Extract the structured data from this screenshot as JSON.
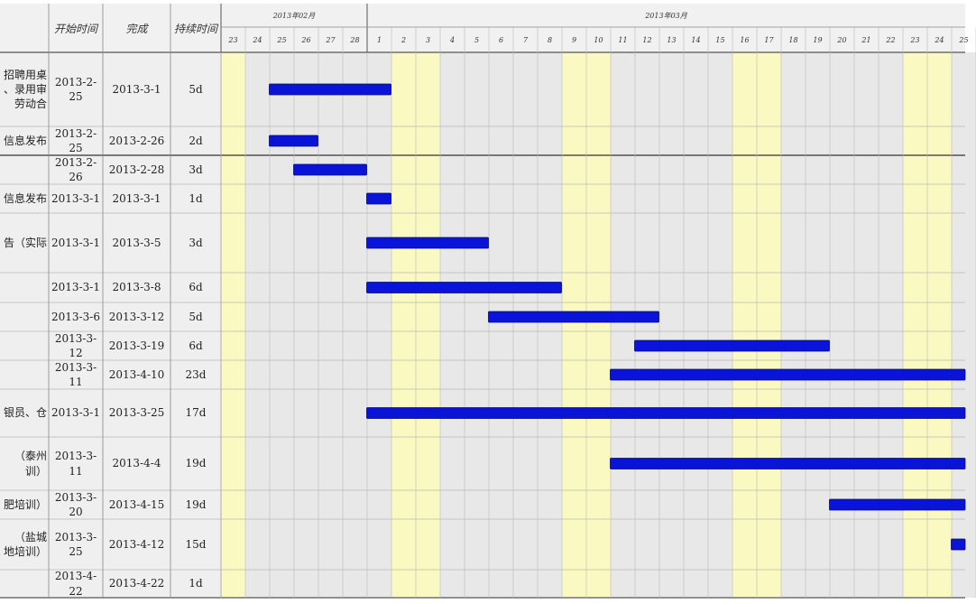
{
  "columns": {
    "start": "开始时间",
    "finish": "完成",
    "duration": "持续时间"
  },
  "months": [
    {
      "label": "2013年02月",
      "first_day_index": 0,
      "day_count": 6
    },
    {
      "label": "2013年03月",
      "first_day_index": 6,
      "day_count": 25
    }
  ],
  "days": [
    "23",
    "24",
    "25",
    "26",
    "27",
    "28",
    "1",
    "2",
    "3",
    "4",
    "5",
    "6",
    "7",
    "8",
    "9",
    "10",
    "11",
    "12",
    "13",
    "14",
    "15",
    "16",
    "17",
    "18",
    "19",
    "20",
    "21",
    "22",
    "23",
    "24",
    "25"
  ],
  "weekend_indices": [
    0,
    7,
    8,
    14,
    15,
    21,
    22,
    28,
    29
  ],
  "colors": {
    "bar": "#0a14d9",
    "weekend": "#fbf9c2",
    "weekday": "#e8e8e8",
    "grid": "#b9b9b9",
    "border": "#7a1f1f"
  },
  "chart_data": {
    "type": "gantt",
    "x_axis": {
      "start": "2013-2-23",
      "end": "2013-3-25",
      "unit": "day"
    },
    "tasks": [
      {
        "name": "招聘用桌\n、录用审\n劳动合",
        "start": "2013-2-25",
        "finish": "2013-3-1",
        "duration": "5d",
        "bar": [
          2,
          7
        ]
      },
      {
        "name": "信息发布",
        "start": "2013-2-25",
        "finish": "2013-2-26",
        "duration": "2d",
        "bar": [
          2,
          4
        ]
      },
      {
        "name": "",
        "start": "2013-2-26",
        "finish": "2013-2-28",
        "duration": "3d",
        "bar": [
          3,
          6
        ]
      },
      {
        "name": "信息发布",
        "start": "2013-3-1",
        "finish": "2013-3-1",
        "duration": "1d",
        "bar": [
          6,
          7
        ]
      },
      {
        "name": "告（实际",
        "start": "2013-3-1",
        "finish": "2013-3-5",
        "duration": "3d",
        "bar": [
          6,
          11
        ]
      },
      {
        "name": "",
        "start": "2013-3-1",
        "finish": "2013-3-8",
        "duration": "6d",
        "bar": [
          6,
          14
        ]
      },
      {
        "name": "",
        "start": "2013-3-6",
        "finish": "2013-3-12",
        "duration": "5d",
        "bar": [
          11,
          18
        ]
      },
      {
        "name": "",
        "start": "2013-3-12",
        "finish": "2013-3-19",
        "duration": "6d",
        "bar": [
          17,
          25
        ]
      },
      {
        "name": "",
        "start": "2013-3-11",
        "finish": "2013-4-10",
        "duration": "23d",
        "bar": [
          16,
          31
        ]
      },
      {
        "name": "银员、仓",
        "start": "2013-3-1",
        "finish": "2013-3-25",
        "duration": "17d",
        "bar": [
          6,
          31
        ]
      },
      {
        "name": "（泰州\n训）",
        "start": "2013-3-11",
        "finish": "2013-4-4",
        "duration": "19d",
        "bar": [
          16,
          31
        ]
      },
      {
        "name": "肥培训）",
        "start": "2013-3-20",
        "finish": "2013-4-15",
        "duration": "19d",
        "bar": [
          25,
          31
        ]
      },
      {
        "name": "（盐城\n地培训）",
        "start": "2013-3-25",
        "finish": "2013-4-12",
        "duration": "15d",
        "bar": [
          30,
          31
        ]
      },
      {
        "name": "",
        "start": "2013-4-22",
        "finish": "2013-4-22",
        "duration": "1d",
        "bar": null
      }
    ]
  }
}
